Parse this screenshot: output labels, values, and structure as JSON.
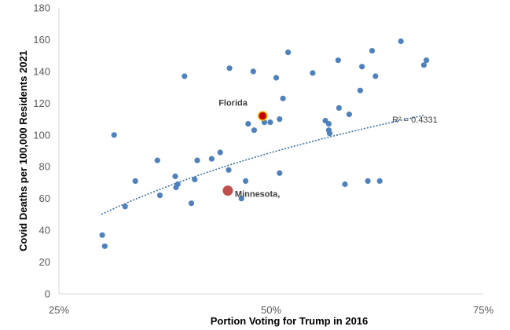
{
  "chart_data": {
    "type": "scatter",
    "title": "",
    "xlabel": "Portion Voting for Trump in 2016",
    "ylabel": "Covid Deaths per 100,000 Residents 2021",
    "xlim": [
      25,
      75
    ],
    "ylim": [
      0,
      180
    ],
    "x_ticks": [
      25,
      50,
      75
    ],
    "x_tick_labels": [
      "25%",
      "50%",
      "75%"
    ],
    "y_ticks": [
      0,
      20,
      40,
      60,
      80,
      100,
      120,
      140,
      160,
      180
    ],
    "y_tick_labels": [
      "0",
      "20",
      "40",
      "60",
      "80",
      "100",
      "120",
      "140",
      "160",
      "180"
    ],
    "grid": false,
    "colors": {
      "points": "#4f81bd",
      "trendline": "#3c6ea8",
      "highlight_florida": "#c00000",
      "highlight_florida_edge": "#ffc000",
      "highlight_minnesota": "#c0504d"
    },
    "series": [
      {
        "points": [
          [
            30.1,
            37
          ],
          [
            30.4,
            30
          ],
          [
            31.5,
            100
          ],
          [
            32.8,
            55
          ],
          [
            34.0,
            71
          ],
          [
            36.6,
            84
          ],
          [
            36.9,
            62
          ],
          [
            38.7,
            74
          ],
          [
            38.8,
            67
          ],
          [
            39.0,
            69
          ],
          [
            39.8,
            137
          ],
          [
            40.6,
            57
          ],
          [
            41.0,
            72
          ],
          [
            41.3,
            84
          ],
          [
            43.0,
            85
          ],
          [
            44.0,
            89
          ],
          [
            45.0,
            78
          ],
          [
            45.1,
            142
          ],
          [
            46.5,
            60
          ],
          [
            47.0,
            71
          ],
          [
            47.3,
            107
          ],
          [
            47.9,
            140
          ],
          [
            48.0,
            103
          ],
          [
            49.2,
            108
          ],
          [
            49.9,
            108
          ],
          [
            50.6,
            136
          ],
          [
            51.0,
            110
          ],
          [
            51.0,
            76
          ],
          [
            51.4,
            123
          ],
          [
            52.0,
            152
          ],
          [
            54.9,
            139
          ],
          [
            56.4,
            109
          ],
          [
            56.8,
            107
          ],
          [
            56.8,
            103
          ],
          [
            56.9,
            101
          ],
          [
            57.9,
            147
          ],
          [
            58.0,
            117
          ],
          [
            58.7,
            69
          ],
          [
            59.2,
            113
          ],
          [
            60.5,
            128
          ],
          [
            60.7,
            143
          ],
          [
            61.4,
            71
          ],
          [
            61.9,
            153
          ],
          [
            62.3,
            137
          ],
          [
            62.8,
            71
          ],
          [
            65.3,
            159
          ],
          [
            68.0,
            144
          ],
          [
            68.3,
            147
          ]
        ]
      }
    ],
    "highlights": [
      {
        "label": "Florida",
        "x": 49.0,
        "y": 112
      },
      {
        "label": "Minnesota,",
        "x": 44.9,
        "y": 65
      }
    ],
    "trendline": {
      "type": "logarithmic",
      "x_range": [
        30,
        68
      ],
      "a": 76.1,
      "c": -208.8,
      "r2_label": "R² = 0.4331"
    }
  }
}
